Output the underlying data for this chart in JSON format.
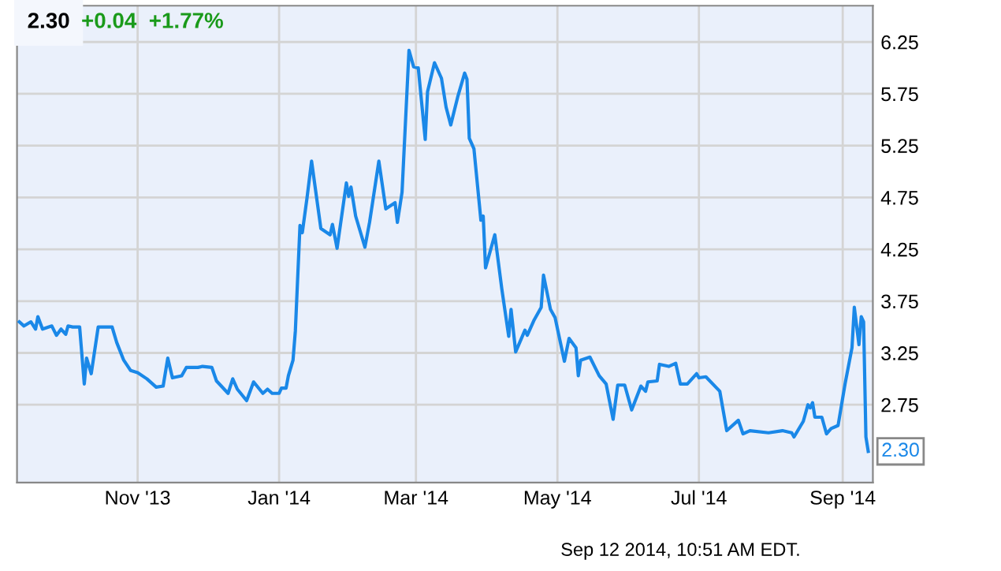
{
  "chart_data": {
    "type": "line",
    "title": "2.30",
    "subtitle": "+0.04  +1.77%",
    "x": [
      "2013-09-11",
      "2013-09-13",
      "2013-09-16",
      "2013-09-18",
      "2013-09-19",
      "2013-09-21",
      "2013-09-25",
      "2013-09-27",
      "2013-09-29",
      "2013-10-01",
      "2013-10-02",
      "2013-10-04",
      "2013-10-07",
      "2013-10-09",
      "2013-10-10",
      "2013-10-12",
      "2013-10-15",
      "2013-10-21",
      "2013-10-23",
      "2013-10-26",
      "2013-10-29",
      "2013-11-01",
      "2013-11-05",
      "2013-11-09",
      "2013-11-12",
      "2013-11-14",
      "2013-11-16",
      "2013-11-20",
      "2013-11-22",
      "2013-11-27",
      "2013-11-29",
      "2013-12-03",
      "2013-12-05",
      "2013-12-10",
      "2013-12-12",
      "2013-12-14",
      "2013-12-18",
      "2013-12-21",
      "2013-12-25",
      "2013-12-27",
      "2013-12-29",
      "2014-01-01",
      "2014-01-02",
      "2014-01-04",
      "2014-01-05",
      "2014-01-07",
      "2014-01-08",
      "2014-01-10",
      "2014-01-11",
      "2014-01-13",
      "2014-01-15",
      "2014-01-19",
      "2014-01-23",
      "2014-01-24",
      "2014-01-26",
      "2014-01-30",
      "2014-01-31",
      "2014-02-01",
      "2014-02-03",
      "2014-02-07",
      "2014-02-09",
      "2014-02-13",
      "2014-02-16",
      "2014-02-20",
      "2014-02-21",
      "2014-02-23",
      "2014-02-26",
      "2014-02-28",
      "2014-03-02",
      "2014-03-05",
      "2014-03-06",
      "2014-03-09",
      "2014-03-12",
      "2014-03-14",
      "2014-03-16",
      "2014-03-19",
      "2014-03-22",
      "2014-03-23",
      "2014-03-24",
      "2014-03-26",
      "2014-03-29",
      "2014-03-30",
      "2014-03-31",
      "2014-04-04",
      "2014-04-07",
      "2014-04-10",
      "2014-04-11",
      "2014-04-13",
      "2014-04-17",
      "2014-04-18",
      "2014-04-21",
      "2014-04-24",
      "2014-04-25",
      "2014-04-28",
      "2014-04-30",
      "2014-05-04",
      "2014-05-06",
      "2014-05-09",
      "2014-05-10",
      "2014-05-11",
      "2014-05-15",
      "2014-05-19",
      "2014-05-22",
      "2014-05-25",
      "2014-05-27",
      "2014-05-30",
      "2014-06-02",
      "2014-06-06",
      "2014-06-08",
      "2014-06-09",
      "2014-06-13",
      "2014-06-14",
      "2014-06-18",
      "2014-06-21",
      "2014-06-23",
      "2014-06-26",
      "2014-06-30",
      "2014-07-01",
      "2014-07-04",
      "2014-07-10",
      "2014-07-13",
      "2014-07-18",
      "2014-07-20",
      "2014-07-23",
      "2014-07-31",
      "2014-08-06",
      "2014-08-10",
      "2014-08-11",
      "2014-08-15",
      "2014-08-17",
      "2014-08-18",
      "2014-08-19",
      "2014-08-20",
      "2014-08-23",
      "2014-08-25",
      "2014-08-27",
      "2014-08-30",
      "2014-09-02",
      "2014-09-05",
      "2014-09-06",
      "2014-09-08",
      "2014-09-09",
      "2014-09-10",
      "2014-09-11",
      "2014-09-12"
    ],
    "series": [
      {
        "color": "#1a88e8",
        "values": [
          3.55,
          3.51,
          3.55,
          3.48,
          3.6,
          3.48,
          3.51,
          3.42,
          3.48,
          3.43,
          3.51,
          3.5,
          3.5,
          2.95,
          3.2,
          3.05,
          3.5,
          3.5,
          3.35,
          3.18,
          3.08,
          3.06,
          3.0,
          2.92,
          2.93,
          3.2,
          3.01,
          3.03,
          3.11,
          3.11,
          3.12,
          3.11,
          2.98,
          2.86,
          3.0,
          2.9,
          2.79,
          2.97,
          2.86,
          2.9,
          2.86,
          2.86,
          2.91,
          2.91,
          3.03,
          3.18,
          3.46,
          4.48,
          4.41,
          4.74,
          5.1,
          4.45,
          4.39,
          4.49,
          4.26,
          4.89,
          4.76,
          4.85,
          4.57,
          4.27,
          4.51,
          5.1,
          4.64,
          4.7,
          4.51,
          4.8,
          6.17,
          6.01,
          6.0,
          5.31,
          5.77,
          6.05,
          5.9,
          5.62,
          5.45,
          5.72,
          5.95,
          5.89,
          5.32,
          5.22,
          4.53,
          4.57,
          4.07,
          4.39,
          3.87,
          3.41,
          3.67,
          3.26,
          3.47,
          3.42,
          3.57,
          3.69,
          4.0,
          3.67,
          3.59,
          3.17,
          3.39,
          3.3,
          3.03,
          3.18,
          3.21,
          3.03,
          2.95,
          2.61,
          2.94,
          2.94,
          2.7,
          2.93,
          2.88,
          2.97,
          2.98,
          3.14,
          3.12,
          3.15,
          2.95,
          2.95,
          3.05,
          3.01,
          3.02,
          2.88,
          2.5,
          2.6,
          2.47,
          2.5,
          2.48,
          2.5,
          2.48,
          2.44,
          2.59,
          2.75,
          2.72,
          2.77,
          2.63,
          2.63,
          2.47,
          2.52,
          2.55,
          2.95,
          3.3,
          3.69,
          3.33,
          3.6,
          3.55,
          2.44,
          2.3
        ]
      }
    ],
    "xlim": [
      "2013-09-10",
      "2014-09-14"
    ],
    "xticks": [
      {
        "value": "2013-11-01",
        "label": "Nov '13"
      },
      {
        "value": "2014-01-01",
        "label": "Jan '14"
      },
      {
        "value": "2014-03-01",
        "label": "Mar '14"
      },
      {
        "value": "2014-05-01",
        "label": "May '14"
      },
      {
        "value": "2014-07-01",
        "label": "Jul '14"
      },
      {
        "value": "2014-09-01",
        "label": "Sep '14"
      }
    ],
    "ylim": [
      2.0,
      6.6
    ],
    "yticks": [
      2.75,
      3.25,
      3.75,
      4.25,
      4.75,
      5.25,
      5.75,
      6.25
    ],
    "grid": true,
    "annotations": [
      {
        "text": "2.30",
        "x": "2014-09-12",
        "y": 2.3
      },
      "Sep 12 2014, 10:51 AM EDT."
    ]
  }
}
